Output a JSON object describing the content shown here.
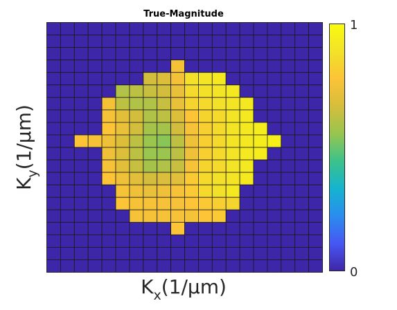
{
  "chart_data": {
    "type": "heatmap",
    "title": "True-Magnitude",
    "xlabel": "K_x(1/μm)",
    "ylabel": "K_y(1/μm)",
    "xlabel_main": "K",
    "xlabel_sub": "x",
    "xlabel_rest": "(1/μm)",
    "ylabel_main": "K",
    "ylabel_sub": "y",
    "ylabel_rest": "(1/μm)",
    "grid_size": 20,
    "colorbar": {
      "colormap": "parula",
      "min": 0,
      "max": 1,
      "tick_labels": [
        "0",
        "1"
      ],
      "stops": [
        "#3e26a8",
        "#4757f3",
        "#2a8cef",
        "#14b4cf",
        "#3cc28a",
        "#97c54f",
        "#d6bd3b",
        "#fcc336",
        "#f2e228",
        "#f9fb0e"
      ]
    },
    "values": [
      [
        0,
        0,
        0,
        0,
        0,
        0,
        0,
        0,
        0,
        0,
        0,
        0,
        0,
        0,
        0,
        0,
        0,
        0,
        0,
        0
      ],
      [
        0,
        0,
        0,
        0,
        0,
        0,
        0,
        0,
        0,
        0,
        0,
        0,
        0,
        0,
        0,
        0,
        0,
        0,
        0,
        0
      ],
      [
        0,
        0,
        0,
        0,
        0,
        0,
        0,
        0,
        0,
        0,
        0,
        0,
        0,
        0,
        0,
        0,
        0,
        0,
        0,
        0
      ],
      [
        0,
        0,
        0,
        0,
        0,
        0,
        0,
        0,
        0,
        0.75,
        0,
        0,
        0,
        0,
        0,
        0,
        0,
        0,
        0,
        0
      ],
      [
        0,
        0,
        0,
        0,
        0,
        0,
        0,
        0.66,
        0.68,
        0.75,
        0.88,
        0.9,
        0.92,
        0,
        0,
        0,
        0,
        0,
        0,
        0
      ],
      [
        0,
        0,
        0,
        0,
        0,
        0.6,
        0.62,
        0.64,
        0.66,
        0.72,
        0.86,
        0.88,
        0.9,
        0.92,
        0,
        0,
        0,
        0,
        0,
        0
      ],
      [
        0,
        0,
        0,
        0,
        0.75,
        0.62,
        0.6,
        0.6,
        0.64,
        0.72,
        0.84,
        0.86,
        0.88,
        0.9,
        0.92,
        0,
        0,
        0,
        0,
        0
      ],
      [
        0,
        0,
        0,
        0,
        0.76,
        0.7,
        0.66,
        0.6,
        0.62,
        0.68,
        0.78,
        0.84,
        0.86,
        0.9,
        0.92,
        0,
        0,
        0,
        0,
        0
      ],
      [
        0,
        0,
        0,
        0,
        0.78,
        0.72,
        0.66,
        0.58,
        0.58,
        0.66,
        0.76,
        0.82,
        0.86,
        0.9,
        0.92,
        0.94,
        0,
        0,
        0,
        0
      ],
      [
        0,
        0,
        0.78,
        0.76,
        0.74,
        0.68,
        0.62,
        0.56,
        0.54,
        0.62,
        0.74,
        0.82,
        0.86,
        0.9,
        0.92,
        0.94,
        0.95,
        0,
        0,
        0
      ],
      [
        0,
        0,
        0,
        0,
        0.74,
        0.68,
        0.62,
        0.56,
        0.56,
        0.62,
        0.74,
        0.82,
        0.86,
        0.9,
        0.92,
        0.94,
        0,
        0,
        0,
        0
      ],
      [
        0,
        0,
        0,
        0,
        0.76,
        0.7,
        0.64,
        0.58,
        0.6,
        0.64,
        0.76,
        0.84,
        0.86,
        0.9,
        0.92,
        0,
        0,
        0,
        0,
        0
      ],
      [
        0,
        0,
        0,
        0,
        0.78,
        0.74,
        0.7,
        0.66,
        0.68,
        0.7,
        0.8,
        0.86,
        0.88,
        0.9,
        0.92,
        0,
        0,
        0,
        0,
        0
      ],
      [
        0,
        0,
        0,
        0,
        0,
        0.76,
        0.74,
        0.72,
        0.74,
        0.76,
        0.8,
        0.86,
        0.88,
        0.92,
        0,
        0,
        0,
        0,
        0,
        0
      ],
      [
        0,
        0,
        0,
        0,
        0,
        0.78,
        0.76,
        0.76,
        0.76,
        0.76,
        0.78,
        0.8,
        0.82,
        0.84,
        0,
        0,
        0,
        0,
        0,
        0
      ],
      [
        0,
        0,
        0,
        0,
        0,
        0,
        0.76,
        0.76,
        0.76,
        0.76,
        0.76,
        0.78,
        0.8,
        0,
        0,
        0,
        0,
        0,
        0,
        0
      ],
      [
        0,
        0,
        0,
        0,
        0,
        0,
        0,
        0,
        0,
        0.78,
        0,
        0,
        0,
        0,
        0,
        0,
        0,
        0,
        0,
        0
      ],
      [
        0,
        0,
        0,
        0,
        0,
        0,
        0,
        0,
        0,
        0,
        0,
        0,
        0,
        0,
        0,
        0,
        0,
        0,
        0,
        0
      ],
      [
        0,
        0,
        0,
        0,
        0,
        0,
        0,
        0,
        0,
        0,
        0,
        0,
        0,
        0,
        0,
        0,
        0,
        0,
        0,
        0
      ],
      [
        0,
        0,
        0,
        0,
        0,
        0,
        0,
        0,
        0,
        0,
        0,
        0,
        0,
        0,
        0,
        0,
        0,
        0,
        0,
        0
      ]
    ]
  }
}
